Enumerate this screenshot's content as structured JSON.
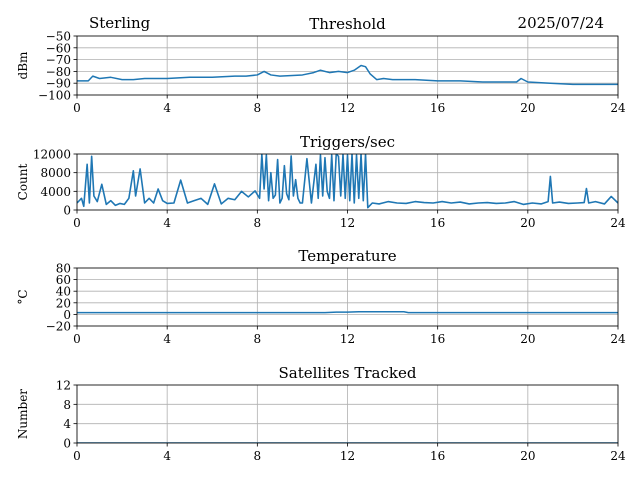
{
  "header": {
    "station": "Sterling",
    "date": "2025/07/24"
  },
  "chart_data": [
    {
      "type": "line",
      "title": "Threshold",
      "xlabel": "",
      "ylabel": "dBm",
      "xlim": [
        0,
        24
      ],
      "ylim": [
        -100,
        -50
      ],
      "xticks": [
        0,
        4,
        8,
        12,
        16,
        20,
        24
      ],
      "yticks": [
        -100,
        -90,
        -80,
        -70,
        -60,
        -50
      ],
      "ytick_labels": [
        "−100",
        "−90",
        "−80",
        "−70",
        "−60",
        "−50"
      ],
      "grid": true,
      "color": "#1f77b4",
      "series": [
        {
          "x": [
            0,
            0.5,
            0.7,
            1,
            1.5,
            2,
            2.5,
            3,
            4,
            5,
            6,
            7,
            7.5,
            8,
            8.3,
            8.6,
            9,
            10,
            10.5,
            10.8,
            11.2,
            11.6,
            12,
            12.3,
            12.6,
            12.8,
            13.0,
            13.3,
            13.6,
            14,
            15,
            16,
            17,
            18,
            19,
            19.5,
            19.7,
            20,
            21,
            22,
            23,
            24
          ],
          "y": [
            -88,
            -88,
            -84,
            -86,
            -85,
            -87,
            -87,
            -86,
            -86,
            -85,
            -85,
            -84,
            -84,
            -83,
            -80,
            -83,
            -84,
            -83,
            -81,
            -79,
            -81,
            -80,
            -81,
            -79,
            -75,
            -76,
            -82,
            -87,
            -86,
            -87,
            -87,
            -88,
            -88,
            -89,
            -89,
            -89,
            -86,
            -89,
            -90,
            -91,
            -91,
            -91
          ]
        }
      ]
    },
    {
      "type": "line",
      "title": "Triggers/sec",
      "xlabel": "",
      "ylabel": "Count",
      "xlim": [
        0,
        24
      ],
      "ylim": [
        0,
        12000
      ],
      "xticks": [
        0,
        4,
        8,
        12,
        16,
        20,
        24
      ],
      "yticks": [
        0,
        4000,
        8000,
        12000
      ],
      "grid": true,
      "color": "#1f77b4",
      "series": [
        {
          "x": [
            0,
            0.2,
            0.3,
            0.45,
            0.55,
            0.65,
            0.75,
            0.9,
            1.1,
            1.3,
            1.5,
            1.7,
            1.9,
            2.1,
            2.3,
            2.5,
            2.6,
            2.8,
            3.0,
            3.2,
            3.4,
            3.6,
            3.8,
            4.0,
            4.3,
            4.6,
            4.9,
            5.2,
            5.5,
            5.8,
            6.1,
            6.4,
            6.7,
            7.0,
            7.3,
            7.6,
            7.9,
            8.1,
            8.2,
            8.3,
            8.4,
            8.5,
            8.6,
            8.7,
            8.8,
            8.9,
            9.0,
            9.1,
            9.2,
            9.3,
            9.4,
            9.5,
            9.6,
            9.7,
            9.8,
            9.9,
            10.0,
            10.2,
            10.4,
            10.6,
            10.7,
            10.8,
            10.9,
            11.0,
            11.1,
            11.2,
            11.3,
            11.4,
            11.5,
            11.6,
            11.7,
            11.8,
            11.9,
            12.0,
            12.1,
            12.2,
            12.3,
            12.4,
            12.5,
            12.6,
            12.7,
            12.8,
            12.9,
            13.1,
            13.4,
            13.8,
            14.2,
            14.6,
            15.0,
            15.4,
            15.8,
            16.2,
            16.6,
            17.0,
            17.4,
            17.8,
            18.2,
            18.6,
            19.0,
            19.4,
            19.8,
            20.2,
            20.6,
            20.9,
            21.0,
            21.1,
            21.4,
            21.8,
            22.2,
            22.5,
            22.6,
            22.7,
            23.0,
            23.4,
            23.7,
            24.0
          ],
          "y": [
            1500,
            2500,
            800,
            9800,
            1500,
            11500,
            3000,
            1800,
            5500,
            1200,
            2000,
            1000,
            1400,
            1200,
            2500,
            8400,
            3000,
            8800,
            1500,
            2500,
            1500,
            4500,
            2000,
            1400,
            1500,
            6400,
            1500,
            2000,
            2500,
            1200,
            5600,
            1300,
            2500,
            2200,
            4000,
            2800,
            4100,
            2500,
            11900,
            4500,
            11800,
            2000,
            8000,
            2500,
            3200,
            10800,
            1500,
            2500,
            9500,
            3500,
            2200,
            11600,
            3000,
            6500,
            2500,
            1500,
            1500,
            11000,
            1500,
            9800,
            2500,
            11800,
            3000,
            11200,
            4000,
            2500,
            11800,
            2000,
            12000,
            11500,
            3000,
            12000,
            2500,
            11800,
            2000,
            12000,
            1500,
            11800,
            2500,
            12000,
            2000,
            12000,
            500,
            1500,
            1300,
            1800,
            1500,
            1400,
            1800,
            1600,
            1500,
            1800,
            1500,
            1700,
            1300,
            1500,
            1600,
            1400,
            1500,
            1800,
            1200,
            1500,
            1300,
            1800,
            7200,
            1500,
            1700,
            1400,
            1500,
            1600,
            4600,
            1500,
            1800,
            1300,
            2900,
            1500
          ]
        }
      ]
    },
    {
      "type": "line",
      "title": "Temperature",
      "xlabel": "",
      "ylabel": "°C",
      "xlim": [
        0,
        24
      ],
      "ylim": [
        -20,
        80
      ],
      "xticks": [
        0,
        4,
        8,
        12,
        16,
        20,
        24
      ],
      "yticks": [
        -20,
        0,
        20,
        40,
        60,
        80
      ],
      "ytick_labels": [
        "−20",
        "0",
        "20",
        "40",
        "60",
        "80"
      ],
      "grid": true,
      "color": "#1f77b4",
      "series": [
        {
          "x": [
            0,
            2,
            4,
            6,
            8,
            10,
            11,
            11.5,
            12,
            12.5,
            13,
            13.5,
            14,
            14.5,
            14.7,
            16,
            18,
            20,
            22,
            24
          ],
          "y": [
            3,
            3,
            3,
            3,
            3,
            3,
            3,
            4,
            4,
            4.5,
            4.5,
            4.5,
            4.5,
            4.5,
            3,
            3,
            3,
            3,
            3,
            3
          ]
        }
      ]
    },
    {
      "type": "line",
      "title": "Satellites Tracked",
      "xlabel": "",
      "ylabel": "Number",
      "xlim": [
        0,
        24
      ],
      "ylim": [
        0,
        12
      ],
      "xticks": [
        0,
        4,
        8,
        12,
        16,
        20,
        24
      ],
      "yticks": [
        0,
        4,
        8,
        12
      ],
      "grid": true,
      "color": "#1f77b4",
      "series": [
        {
          "x": [
            0,
            24
          ],
          "y": [
            0,
            0
          ]
        }
      ]
    }
  ]
}
